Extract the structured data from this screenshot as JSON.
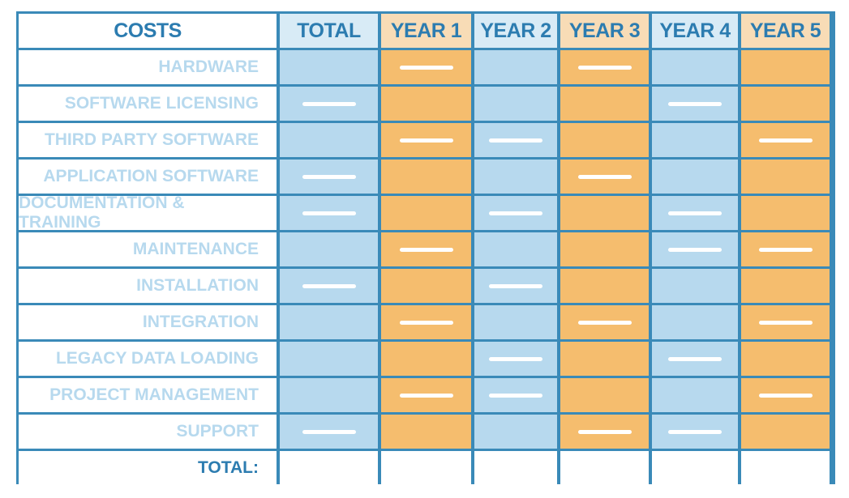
{
  "header": {
    "costs": "COSTS",
    "total": "TOTAL",
    "years": [
      "YEAR 1",
      "YEAR 2",
      "YEAR 3",
      "YEAR 4",
      "YEAR 5"
    ]
  },
  "rows": [
    {
      "label": "HARDWARE",
      "dashes": [
        false,
        true,
        false,
        true,
        false,
        false
      ]
    },
    {
      "label": "SOFTWARE LICENSING",
      "dashes": [
        true,
        false,
        false,
        false,
        true,
        false
      ]
    },
    {
      "label": "THIRD PARTY SOFTWARE",
      "dashes": [
        false,
        true,
        true,
        false,
        false,
        true
      ]
    },
    {
      "label": "APPLICATION SOFTWARE",
      "dashes": [
        true,
        false,
        false,
        true,
        false,
        false
      ]
    },
    {
      "label": "DOCUMENTATION & TRAINING",
      "dashes": [
        true,
        false,
        true,
        false,
        true,
        false
      ]
    },
    {
      "label": "MAINTENANCE",
      "dashes": [
        false,
        true,
        false,
        false,
        true,
        true
      ]
    },
    {
      "label": "INSTALLATION",
      "dashes": [
        true,
        false,
        true,
        false,
        false,
        false
      ]
    },
    {
      "label": "INTEGRATION",
      "dashes": [
        false,
        true,
        false,
        true,
        false,
        true
      ]
    },
    {
      "label": "LEGACY DATA LOADING",
      "dashes": [
        false,
        false,
        true,
        false,
        true,
        false
      ]
    },
    {
      "label": "PROJECT MANAGEMENT",
      "dashes": [
        false,
        true,
        true,
        false,
        false,
        true
      ]
    },
    {
      "label": "SUPPORT",
      "dashes": [
        true,
        false,
        false,
        true,
        true,
        false
      ]
    }
  ],
  "footer": {
    "label": "TOTAL:"
  },
  "colors": {
    "border": "#3a8ab8",
    "heading_text": "#2c7cb0",
    "blue_fill": "#b7d9ee",
    "orange_fill": "#f5bd6e",
    "blue_header": "#d8ebf6",
    "orange_header": "#f8dcb6"
  }
}
